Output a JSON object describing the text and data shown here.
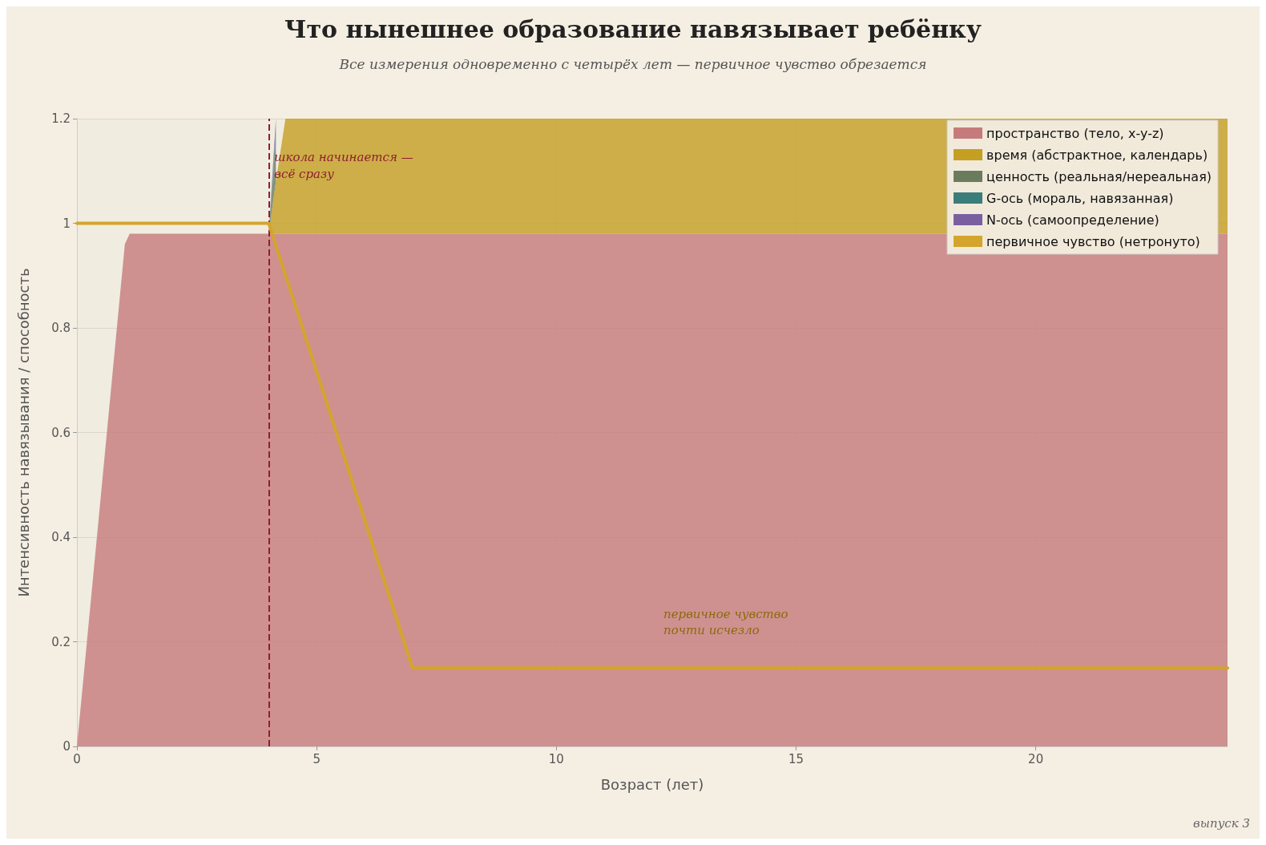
{
  "chart_data": {
    "type": "area",
    "title": "Что нынешнее образование навязывает ребёнку",
    "subtitle": "Все измерения одновременно с четырёх лет — первичное чувство обрезается",
    "xlabel": "Возраст (лет)",
    "ylabel": "Интенсивность навязывания / способность",
    "x": [
      0,
      1,
      1.1,
      4,
      4.15,
      4.35,
      24
    ],
    "stacked": true,
    "series": [
      {
        "name": "пространство (тело, x-y-z)",
        "color": "#c57b7b",
        "values": [
          0,
          0.96,
          0.98,
          0.98,
          0.98,
          0.98,
          0.98
        ]
      },
      {
        "name": "время (абстрактное, календарь)",
        "color": "#c49f22",
        "values": [
          0,
          0,
          0,
          0,
          0.1,
          0.22,
          0.22
        ]
      },
      {
        "name": "ценность (реальная/нереальная)",
        "color": "#6b7c5e",
        "values": [
          0,
          0,
          0,
          0,
          0.08,
          null,
          null
        ]
      },
      {
        "name": "G-ось (мораль, навязанная)",
        "color": "#3a7d7a",
        "values": [
          0,
          0,
          0,
          0,
          0.02,
          null,
          null
        ]
      },
      {
        "name": "N-ось (самоопределение)",
        "color": "#7a5fa0",
        "values": [
          0,
          0,
          0,
          0,
          0.02,
          null,
          null
        ]
      },
      {
        "name": "первичное чувство (нетронуто)",
        "type": "line",
        "color": "#d4a52c",
        "x": [
          0,
          4,
          7,
          24
        ],
        "values": [
          1,
          1,
          0.15,
          0.15
        ]
      }
    ],
    "xlim": [
      0,
      24
    ],
    "xticks": [
      0,
      5,
      10,
      15,
      20
    ],
    "ylim": [
      0,
      1.2
    ],
    "yticks": [
      0,
      0.2,
      0.4,
      0.6,
      0.8,
      1,
      1.2
    ],
    "ref_lines": [
      {
        "axis": "x",
        "value": 4,
        "label": "школа начинается —\nвсё сразу",
        "color": "#8e1f2e",
        "line_style": "dashed"
      }
    ],
    "annotations": [
      "первичное чувство\nпочти исчезло",
      "выпуск 3"
    ],
    "grid": true,
    "legend": "top right",
    "marker": "none",
    "line_style": "solid"
  }
}
